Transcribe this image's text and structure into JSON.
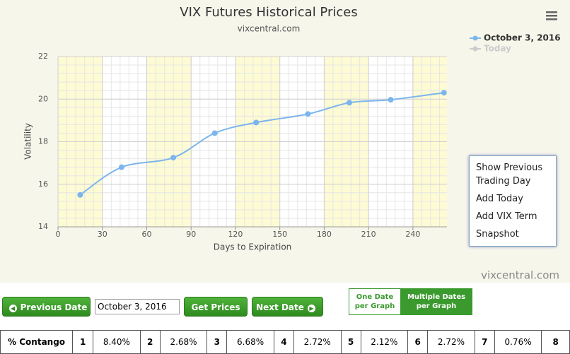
{
  "chart_data": {
    "type": "line",
    "title": "VIX Futures Historical Prices",
    "subtitle": "vixcentral.com",
    "x_label": "Days to Expiration",
    "y_label": "Volatility",
    "x": [
      15,
      43,
      78,
      106,
      134,
      169,
      197,
      225,
      261
    ],
    "series": [
      {
        "name": "October 3, 2016",
        "color": "#7cb5ec",
        "visible": true,
        "values": [
          15.5,
          16.8,
          17.25,
          18.4,
          18.9,
          19.3,
          19.83,
          19.97,
          20.3
        ]
      },
      {
        "name": "Today",
        "color": "#cccccc",
        "visible": false,
        "values": [
          null,
          null,
          null,
          null,
          null,
          null,
          null,
          null,
          null
        ]
      }
    ],
    "xlim": [
      0,
      263
    ],
    "xticks": [
      0,
      30,
      60,
      90,
      120,
      150,
      180,
      210,
      240
    ],
    "ylim": [
      14,
      22
    ],
    "yticks": [
      14,
      16,
      18,
      20,
      22
    ],
    "grid": true,
    "credit": "vixcentral.com",
    "menu": [
      "Show Previous Trading Day",
      "Add Today",
      "Add VIX Term",
      "Snapshot"
    ]
  },
  "controls": {
    "previous": "Previous Date",
    "date": "October 3, 2016",
    "get": "Get Prices",
    "next": "Next Date",
    "toggle": [
      "One Date per Graph",
      "Multiple Dates per Graph"
    ]
  },
  "table": {
    "rows": [
      [
        "% Contango",
        "1",
        "8.40%",
        "2",
        "2.68%",
        "3",
        "6.68%",
        "4",
        "2.72%",
        "5",
        "2.12%",
        "6",
        "2.72%",
        "7",
        "0.76%",
        "8"
      ]
    ]
  }
}
